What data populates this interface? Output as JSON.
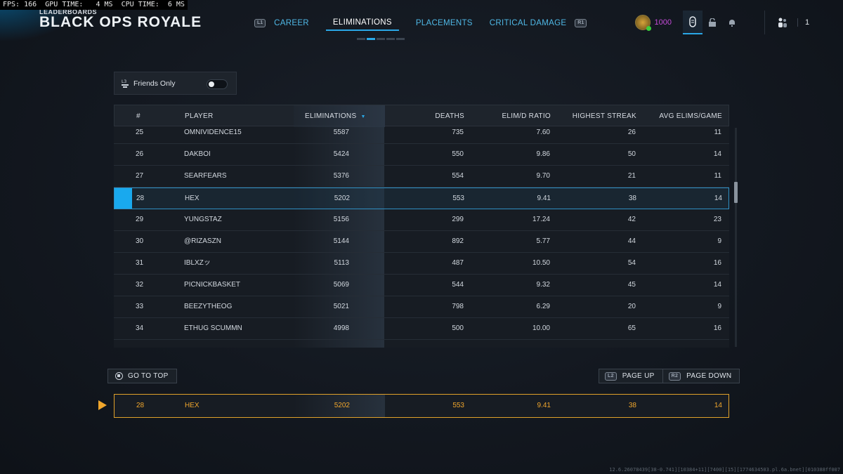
{
  "perf": {
    "fps_label": "FPS:",
    "fps": "166",
    "gpu_label": "GPU TIME:",
    "gpu": "4 MS",
    "cpu_label": "CPU TIME:",
    "cpu": "6 MS"
  },
  "header": {
    "subtitle": "LEADERBOARDS",
    "title": "BLACK OPS ROYALE",
    "prev_hint": "L1",
    "next_hint": "R1",
    "tabs": [
      {
        "label": "CAREER",
        "active": false
      },
      {
        "label": "ELIMINATIONS",
        "active": true
      },
      {
        "label": "PLACEMENTS",
        "active": false
      },
      {
        "label": "CRITICAL DAMAGE",
        "active": false
      }
    ],
    "page_indicator": {
      "count": 5,
      "active_index": 1
    }
  },
  "topbar": {
    "points": "1000",
    "party_count": "1",
    "accent_purple": "#c54bd9",
    "accent_blue": "#2aa7e6"
  },
  "filter": {
    "hint": "L3",
    "label": "Friends Only",
    "enabled": false
  },
  "table": {
    "columns": [
      "#",
      "PLAYER",
      "ELIMINATIONS",
      "DEATHS",
      "ELIM/D RATIO",
      "HIGHEST STREAK",
      "AVG ELIMS/GAME"
    ],
    "sorted_by": "ELIMINATIONS",
    "rows": [
      {
        "rank": "25",
        "player": "OMNIVIDENCE15",
        "elims": "5587",
        "deaths": "735",
        "ratio": "7.60",
        "streak": "26",
        "avg": "11"
      },
      {
        "rank": "26",
        "player": "DAKBOI",
        "elims": "5424",
        "deaths": "550",
        "ratio": "9.86",
        "streak": "50",
        "avg": "14"
      },
      {
        "rank": "27",
        "player": "SEARFEARS",
        "elims": "5376",
        "deaths": "554",
        "ratio": "9.70",
        "streak": "21",
        "avg": "11"
      },
      {
        "rank": "28",
        "player": "HEX",
        "elims": "5202",
        "deaths": "553",
        "ratio": "9.41",
        "streak": "38",
        "avg": "14",
        "is_me": true
      },
      {
        "rank": "29",
        "player": "YUNGSTAZ",
        "elims": "5156",
        "deaths": "299",
        "ratio": "17.24",
        "streak": "42",
        "avg": "23"
      },
      {
        "rank": "30",
        "player": "@RIZASZN",
        "elims": "5144",
        "deaths": "892",
        "ratio": "5.77",
        "streak": "44",
        "avg": "9"
      },
      {
        "rank": "31",
        "player": "IBLXZッ",
        "elims": "5113",
        "deaths": "487",
        "ratio": "10.50",
        "streak": "54",
        "avg": "16"
      },
      {
        "rank": "32",
        "player": "PICNICKBASKET",
        "elims": "5069",
        "deaths": "544",
        "ratio": "9.32",
        "streak": "45",
        "avg": "14"
      },
      {
        "rank": "33",
        "player": "BEEZYTHEOG",
        "elims": "5021",
        "deaths": "798",
        "ratio": "6.29",
        "streak": "20",
        "avg": "9"
      },
      {
        "rank": "34",
        "player": "ETHUG SCUMMN",
        "elims": "4998",
        "deaths": "500",
        "ratio": "10.00",
        "streak": "65",
        "avg": "16"
      }
    ],
    "highlight_color": "#19a9ee"
  },
  "nav": {
    "go_top": "GO TO TOP",
    "page_up_hint": "L2",
    "page_up": "PAGE UP",
    "page_down_hint": "R2",
    "page_down": "PAGE DOWN"
  },
  "my_row": {
    "rank": "28",
    "player": "HEX",
    "elims": "5202",
    "deaths": "553",
    "ratio": "9.41",
    "streak": "38",
    "avg": "14",
    "color": "#f0a62c"
  },
  "footer": {
    "build": "12.6.26078439[38-0.741][10384+11][7400][15][1774634503.pl.6a.bnet][010388ff007"
  }
}
